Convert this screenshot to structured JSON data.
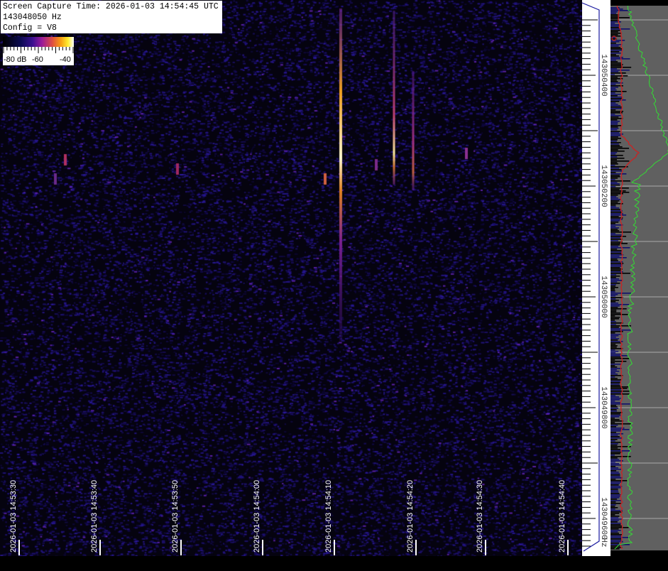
{
  "info": {
    "capture_time": "Screen Capture Time: 2026-01-03 14:54:45 UTC",
    "frequency": "143048050 Hz",
    "config": "Config = V8"
  },
  "colorbar": {
    "labels": [
      "-80 dB",
      "-60",
      "-40"
    ],
    "range_db": [
      -80,
      -35
    ]
  },
  "frequency_axis": {
    "labels": [
      "143050400",
      "143050200",
      "143050000",
      "143049800",
      "143049600"
    ],
    "unit": "Hz"
  },
  "time_axis": {
    "labels": [
      "2026-01-03 14:53:30",
      "2026-01-03 14:53:40",
      "2026-01-03 14:53:50",
      "2026-01-03 14:54:00",
      "2026-01-03 14:54:10",
      "2026-01-03 14:54:20",
      "2026-01-03 14:54:30",
      "2026-01-03 14:54:40"
    ]
  },
  "colors": {
    "spectrum_bg": "#606060",
    "avg_trace": "#cc2222",
    "peak_trace": "#33dd33",
    "live_bars": "#10106a",
    "axis_line": "#1a1aa0"
  }
}
